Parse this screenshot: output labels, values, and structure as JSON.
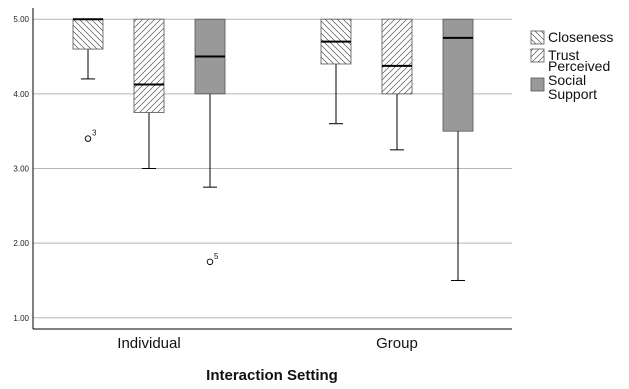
{
  "chart_data": {
    "type": "boxplot",
    "title": "",
    "xlabel": "Interaction Setting",
    "ylabel": "",
    "ylim": [
      0.85,
      5.15
    ],
    "yticks": [
      "1.00",
      "2.00",
      "3.00",
      "4.00",
      "5.00"
    ],
    "categories": [
      "Individual",
      "Group"
    ],
    "grid": true,
    "legend_position": "right",
    "series": [
      {
        "name": "Closeness",
        "pattern": "backslash-hatch",
        "color": "#ffffff",
        "boxes": [
          {
            "min": 4.2,
            "q1": 4.6,
            "median": 5.0,
            "q3": 5.0,
            "max": 5.0,
            "outliers": [
              {
                "value": 3.4,
                "label": "3"
              }
            ]
          },
          {
            "min": 3.6,
            "q1": 4.4,
            "median": 4.7,
            "q3": 5.0,
            "max": 5.0,
            "outliers": []
          }
        ]
      },
      {
        "name": "Trust",
        "pattern": "slash-hatch",
        "color": "#ffffff",
        "boxes": [
          {
            "min": 3.0,
            "q1": 3.75,
            "median": 4.125,
            "q3": 5.0,
            "max": 5.0,
            "outliers": []
          },
          {
            "min": 3.25,
            "q1": 4.0,
            "median": 4.375,
            "q3": 5.0,
            "max": 5.0,
            "outliers": []
          }
        ]
      },
      {
        "name": "Perceived Social Support",
        "name_lines": [
          "Perceived",
          "Social",
          "Support"
        ],
        "pattern": "solid",
        "color": "#999999",
        "boxes": [
          {
            "min": 2.75,
            "q1": 4.0,
            "median": 4.5,
            "q3": 5.0,
            "max": 5.0,
            "outliers": [
              {
                "value": 1.75,
                "label": "5"
              }
            ]
          },
          {
            "min": 1.5,
            "q1": 3.5,
            "median": 4.75,
            "q3": 5.0,
            "max": 5.0,
            "outliers": []
          }
        ]
      }
    ]
  }
}
